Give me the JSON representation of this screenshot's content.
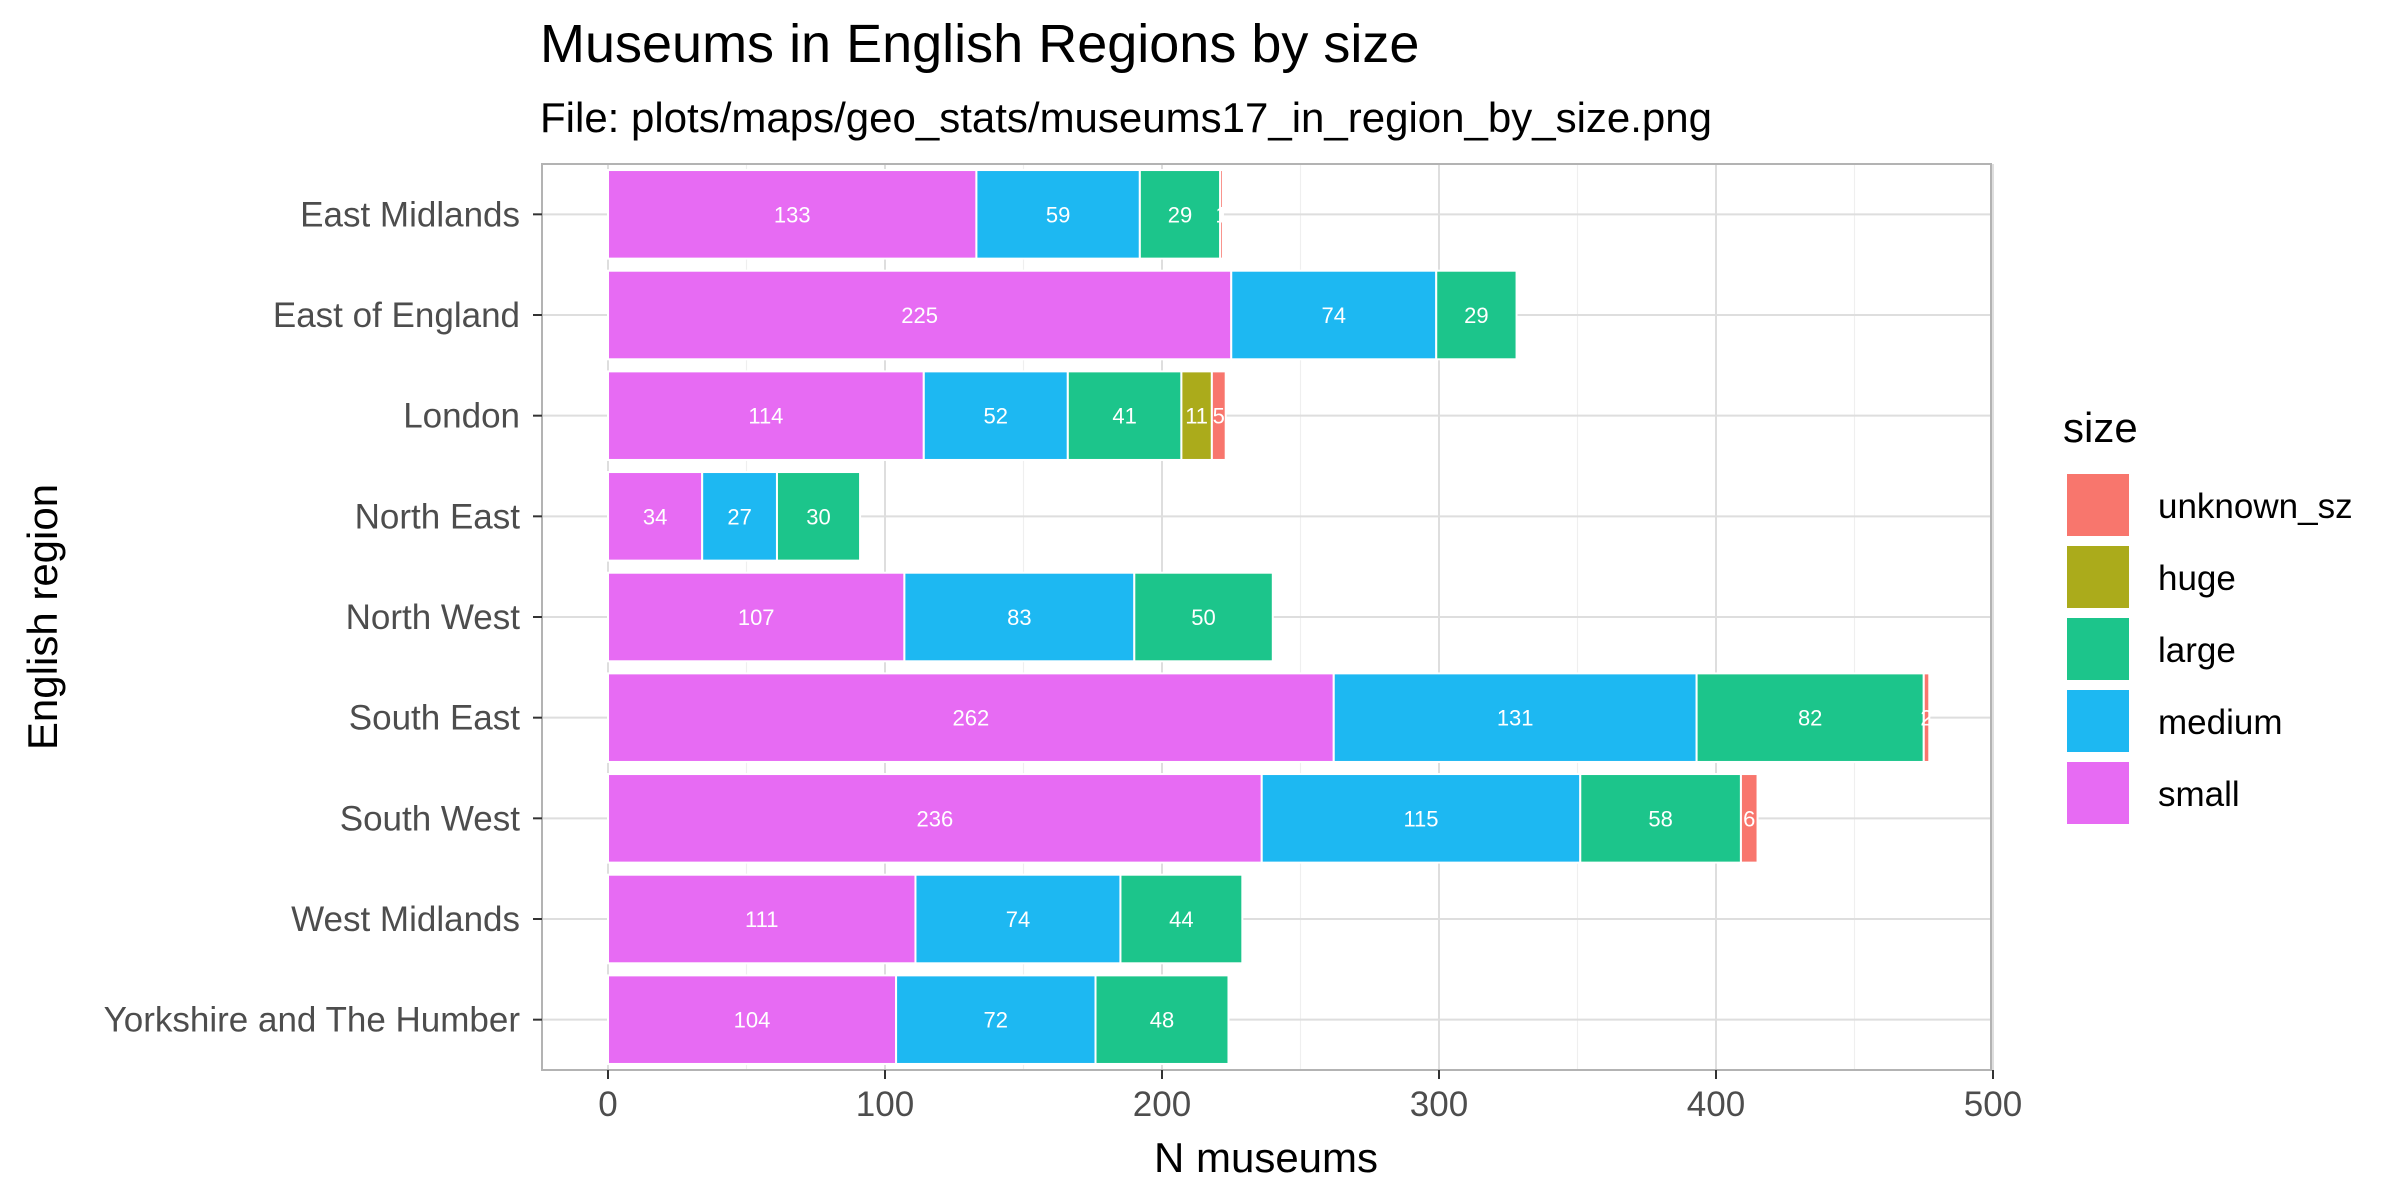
{
  "chart_data": {
    "type": "bar",
    "orientation": "horizontal",
    "stacked": true,
    "title": "Museums in English Regions by size",
    "subtitle": "File: plots/maps/geo_stats/museums17_in_region_by_size.png",
    "xlabel": "N museums",
    "ylabel": "English region",
    "xlim": [
      0,
      500
    ],
    "xticks": [
      0,
      100,
      200,
      300,
      400,
      500
    ],
    "grid": true,
    "legend_position": "right",
    "legend_title": "size",
    "legend_order": [
      "unknown_sz",
      "huge",
      "large",
      "medium",
      "small"
    ],
    "categories": [
      "East Midlands",
      "East of England",
      "London",
      "North East",
      "North West",
      "South East",
      "South West",
      "West Midlands",
      "Yorkshire and The Humber"
    ],
    "series": [
      {
        "name": "small",
        "color": "#E76BF3",
        "values": [
          133,
          225,
          114,
          34,
          107,
          262,
          236,
          111,
          104
        ]
      },
      {
        "name": "medium",
        "color": "#1DB8F2",
        "values": [
          59,
          74,
          52,
          27,
          83,
          131,
          115,
          74,
          72
        ]
      },
      {
        "name": "large",
        "color": "#1CC58B",
        "values": [
          29,
          29,
          41,
          30,
          50,
          82,
          58,
          44,
          48
        ]
      },
      {
        "name": "huge",
        "color": "#ABAB1B",
        "values": [
          0,
          0,
          11,
          0,
          0,
          0,
          0,
          0,
          0
        ]
      },
      {
        "name": "unknown_sz",
        "color": "#F8766D",
        "values": [
          1,
          0,
          5,
          0,
          0,
          2,
          6,
          0,
          0
        ]
      }
    ]
  }
}
